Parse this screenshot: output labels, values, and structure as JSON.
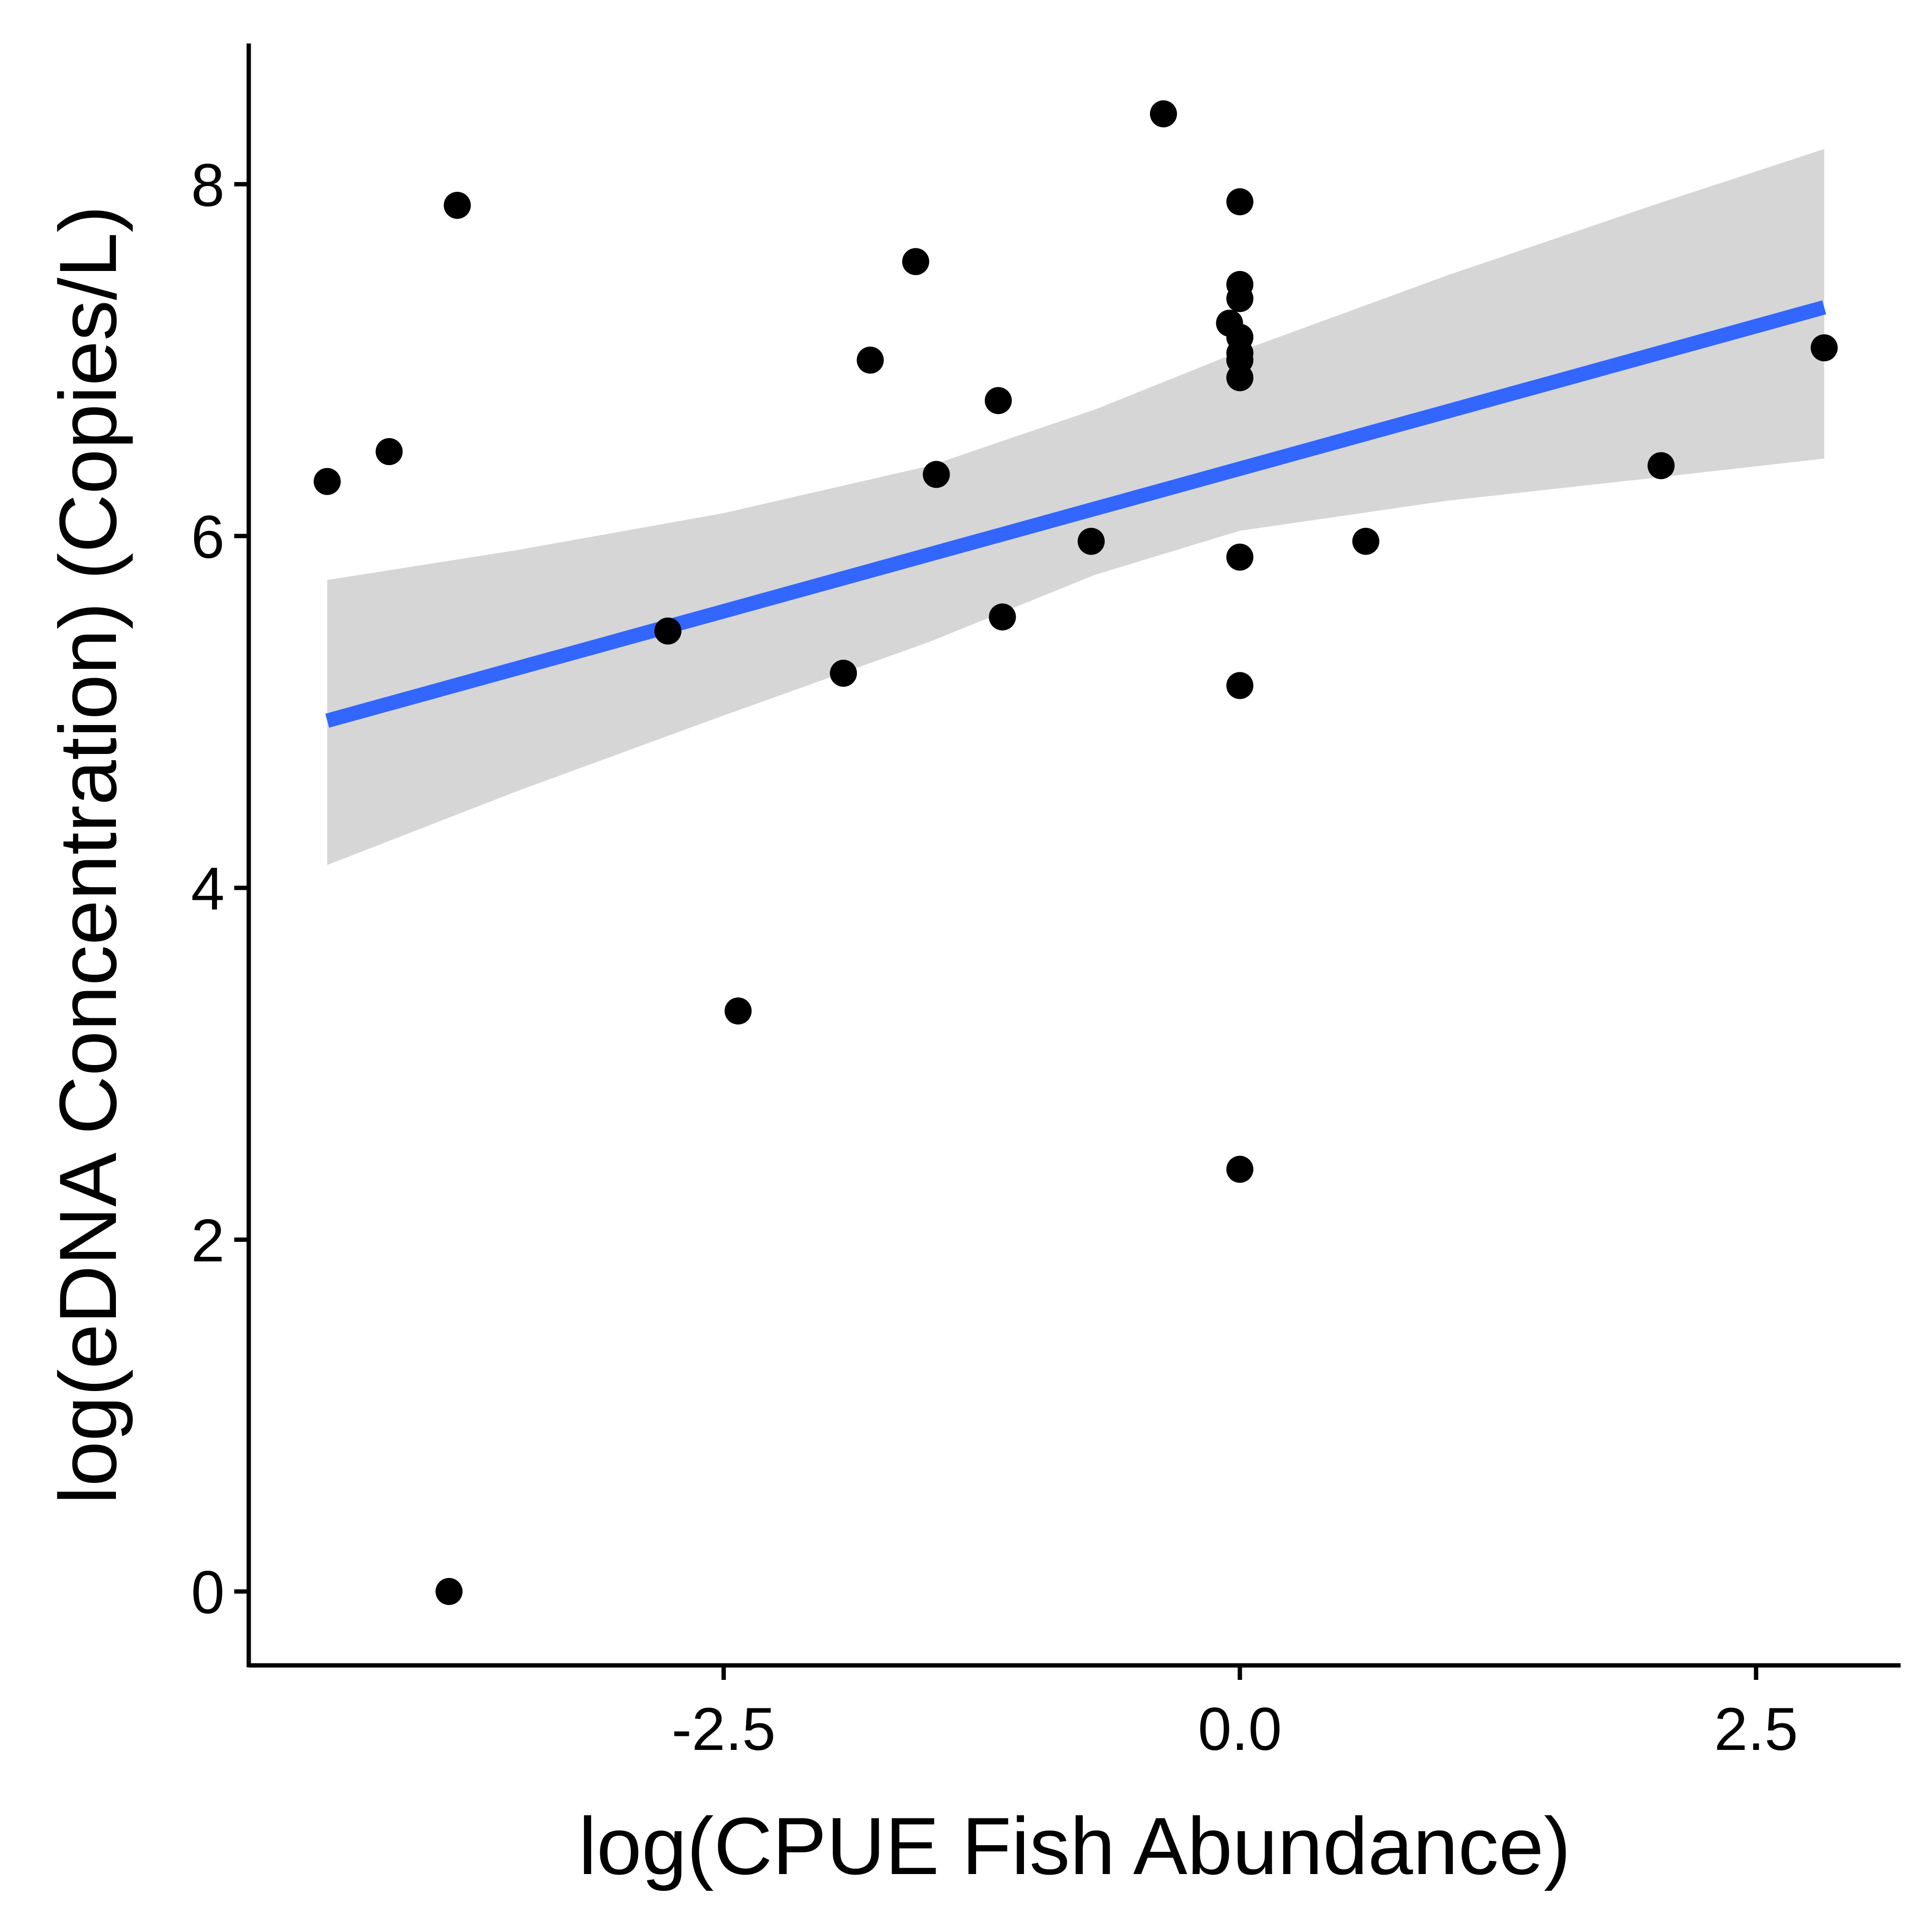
{
  "chart_data": {
    "type": "scatter",
    "xlabel": "log(CPUE Fish Abundance)",
    "ylabel": "log(eDNA Concentration) (Copies/L)",
    "xlim": [
      -4.8,
      3.2
    ],
    "ylim": [
      -0.42,
      8.8
    ],
    "x_ticks": [
      -2.5,
      0.0,
      2.5
    ],
    "x_tick_labels": [
      "-2.5",
      "0.0",
      "2.5"
    ],
    "y_ticks": [
      0,
      2,
      4,
      6,
      8
    ],
    "y_tick_labels": [
      "0",
      "2",
      "4",
      "6",
      "8"
    ],
    "grid": false,
    "legend": "none",
    "points": [
      {
        "x": -4.42,
        "y": 6.31
      },
      {
        "x": -4.12,
        "y": 6.48
      },
      {
        "x": -3.79,
        "y": 7.88
      },
      {
        "x": -3.83,
        "y": 0.0
      },
      {
        "x": -2.77,
        "y": 5.46
      },
      {
        "x": -2.43,
        "y": 3.3
      },
      {
        "x": -1.92,
        "y": 5.22
      },
      {
        "x": -1.79,
        "y": 7.0
      },
      {
        "x": -1.57,
        "y": 7.56
      },
      {
        "x": -1.47,
        "y": 6.35
      },
      {
        "x": -1.17,
        "y": 6.77
      },
      {
        "x": -1.15,
        "y": 5.54
      },
      {
        "x": -0.72,
        "y": 5.97
      },
      {
        "x": -0.37,
        "y": 8.4
      },
      {
        "x": 0.0,
        "y": 7.9
      },
      {
        "x": 0.0,
        "y": 7.43
      },
      {
        "x": 0.0,
        "y": 7.35
      },
      {
        "x": -0.05,
        "y": 7.21
      },
      {
        "x": 0.0,
        "y": 7.13
      },
      {
        "x": 0.0,
        "y": 7.04
      },
      {
        "x": 0.0,
        "y": 7.0
      },
      {
        "x": 0.0,
        "y": 6.9
      },
      {
        "x": 0.0,
        "y": 5.88
      },
      {
        "x": 0.0,
        "y": 5.15
      },
      {
        "x": 0.0,
        "y": 2.4
      },
      {
        "x": 0.61,
        "y": 5.97
      },
      {
        "x": 2.04,
        "y": 6.4
      },
      {
        "x": 2.83,
        "y": 7.07
      }
    ],
    "fit_line": {
      "x": [
        -4.42,
        2.83
      ],
      "y": [
        4.95,
        7.3
      ],
      "color": "#3366ff"
    },
    "confidence_band": {
      "x": [
        -4.42,
        -3.5,
        -2.5,
        -1.5,
        -0.7,
        0.0,
        1.0,
        2.0,
        2.83
      ],
      "lower": [
        4.13,
        4.55,
        4.98,
        5.4,
        5.78,
        6.03,
        6.2,
        6.33,
        6.44
      ],
      "upper": [
        5.75,
        5.92,
        6.13,
        6.4,
        6.72,
        7.05,
        7.48,
        7.88,
        8.2
      ],
      "color": "#d6d6d6"
    },
    "point_color": "#000000"
  }
}
